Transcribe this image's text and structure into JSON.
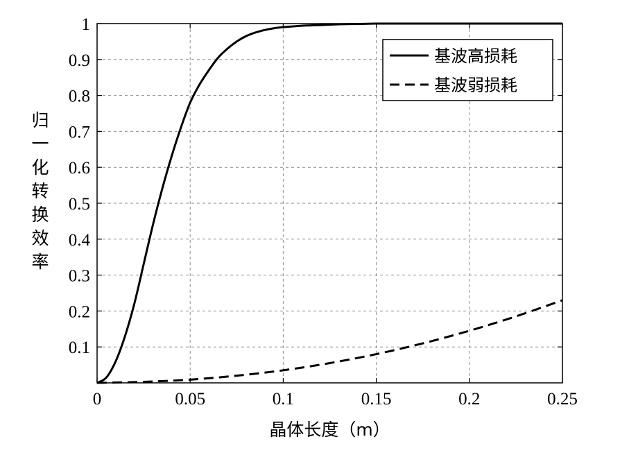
{
  "chart_data": {
    "type": "line",
    "xlabel": "晶体长度（m）",
    "ylabel": "归一化转换效率",
    "xlim": [
      0,
      0.25
    ],
    "ylim": [
      0,
      1
    ],
    "xticks": [
      0,
      0.05,
      0.1,
      0.15,
      0.2,
      0.25
    ],
    "xtick_labels": [
      "0",
      "0.05",
      "0.1",
      "0.15",
      "0.2",
      "0.25"
    ],
    "yticks": [
      0.1,
      0.2,
      0.3,
      0.4,
      0.5,
      0.6,
      0.7,
      0.8,
      0.9,
      1
    ],
    "ytick_labels": [
      "0.1",
      "0.2",
      "0.3",
      "0.4",
      "0.5",
      "0.6",
      "0.7",
      "0.8",
      "0.9",
      "1"
    ],
    "grid": true,
    "legend_position": "top-right",
    "series": [
      {
        "name": "基波高损耗",
        "style": "solid",
        "color": "#000000",
        "x": [
          0,
          0.005,
          0.01,
          0.015,
          0.02,
          0.025,
          0.03,
          0.035,
          0.04,
          0.045,
          0.05,
          0.055,
          0.06,
          0.065,
          0.07,
          0.075,
          0.08,
          0.085,
          0.09,
          0.095,
          0.1,
          0.11,
          0.12,
          0.13,
          0.14,
          0.15,
          0.16,
          0.18,
          0.2,
          0.22,
          0.25
        ],
        "y": [
          0,
          0.015,
          0.06,
          0.13,
          0.22,
          0.33,
          0.44,
          0.54,
          0.63,
          0.71,
          0.78,
          0.83,
          0.87,
          0.905,
          0.93,
          0.95,
          0.965,
          0.975,
          0.982,
          0.987,
          0.99,
          0.994,
          0.996,
          0.998,
          0.999,
          1.0,
          1.0,
          1.0,
          1.0,
          1.0,
          1.0
        ]
      },
      {
        "name": "基波弱损耗",
        "style": "dashed",
        "color": "#000000",
        "x": [
          0,
          0.025,
          0.05,
          0.075,
          0.1,
          0.125,
          0.15,
          0.175,
          0.2,
          0.225,
          0.25
        ],
        "y": [
          0,
          0.003,
          0.009,
          0.02,
          0.035,
          0.055,
          0.08,
          0.11,
          0.145,
          0.185,
          0.23
        ]
      }
    ]
  }
}
